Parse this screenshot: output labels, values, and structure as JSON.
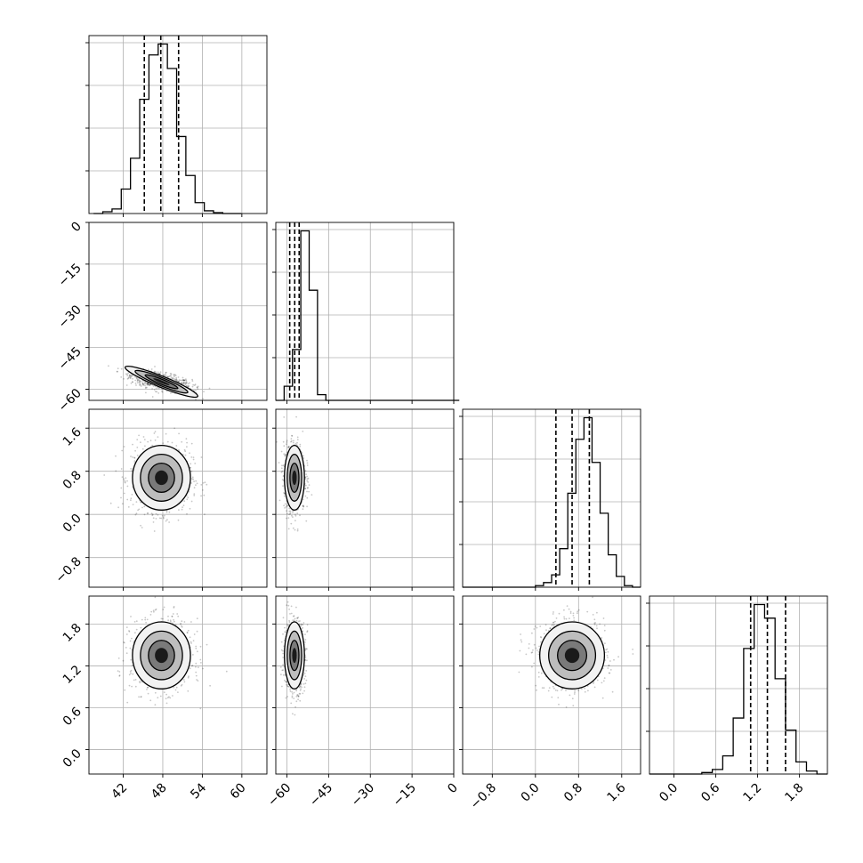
{
  "chart_data": {
    "type": "corner",
    "grid": true,
    "parameters": [
      {
        "title": "",
        "ticks": [
          42,
          48,
          54,
          60
        ],
        "tick_labels": [
          "42",
          "48",
          "54",
          "60"
        ],
        "range": [
          36.8,
          63.8
        ],
        "quantiles": [
          45.2,
          47.7,
          50.4
        ],
        "center": 47.8,
        "sd": 2.2
      },
      {
        "title": "",
        "ticks": [
          -60,
          -45,
          -30,
          -15,
          0
        ],
        "tick_labels": [
          "−60",
          "−45",
          "−30",
          "−15",
          "0"
        ],
        "range": [
          -64.0,
          0.0
        ],
        "quantiles": [
          -59.0,
          -57.2,
          -55.6
        ],
        "center": -57.3,
        "sd": 1.8
      },
      {
        "title": "",
        "ticks": [
          -0.8,
          0.0,
          0.8,
          1.6
        ],
        "tick_labels": [
          "−0.8",
          "0.0",
          "0.8",
          "1.6"
        ],
        "range": [
          -1.35,
          1.95
        ],
        "quantiles": [
          0.38,
          0.68,
          1.0
        ],
        "center": 0.68,
        "sd": 0.3
      },
      {
        "title": "",
        "ticks": [
          0.0,
          0.6,
          1.2,
          1.8
        ],
        "tick_labels": [
          "0.0",
          "0.6",
          "1.2",
          "1.8"
        ],
        "range": [
          -0.35,
          2.2
        ],
        "quantiles": [
          1.1,
          1.34,
          1.6
        ],
        "center": 1.35,
        "sd": 0.24
      }
    ],
    "histograms": [
      {
        "param": 0,
        "bins": [
          37.5,
          38.9,
          40.3,
          41.7,
          43.1,
          44.5,
          45.9,
          47.3,
          48.7,
          50.1,
          51.5,
          52.9,
          54.3,
          55.7,
          57.1,
          58.5
        ],
        "counts": [
          0,
          2,
          5,
          27,
          61,
          126,
          175,
          187,
          160,
          85,
          42,
          12,
          3,
          1,
          0,
          0
        ]
      },
      {
        "param": 1,
        "bins": [
          -64,
          -61,
          -58,
          -55,
          -52,
          -49,
          -46,
          -43,
          -40,
          -37,
          -34,
          -31,
          -28,
          -25,
          -22,
          -19,
          -16,
          -13,
          -10,
          -7,
          -4,
          -1
        ],
        "counts": [
          0,
          5,
          18,
          60,
          39,
          2,
          0,
          0,
          0,
          0,
          0,
          0,
          0,
          0,
          0,
          0,
          0,
          0,
          0,
          0,
          0,
          0
        ]
      },
      {
        "param": 2,
        "bins": [
          -1.35,
          -1.2,
          -1.05,
          -0.9,
          -0.75,
          -0.6,
          -0.45,
          -0.3,
          -0.15,
          0.0,
          0.15,
          0.3,
          0.45,
          0.6,
          0.75,
          0.9,
          1.05,
          1.2,
          1.35,
          1.5,
          1.65,
          1.8
        ],
        "counts": [
          0,
          0,
          0,
          0,
          0,
          0,
          0,
          0,
          0,
          1,
          3,
          8,
          25,
          61,
          96,
          110,
          81,
          48,
          21,
          7,
          1,
          0
        ]
      },
      {
        "param": 3,
        "bins": [
          -0.35,
          -0.2,
          -0.05,
          0.1,
          0.25,
          0.4,
          0.55,
          0.7,
          0.85,
          1.0,
          1.15,
          1.3,
          1.45,
          1.6,
          1.75,
          1.9,
          2.05
        ],
        "counts": [
          0,
          0,
          0,
          0,
          0,
          1,
          3,
          12,
          37,
          83,
          112,
          103,
          63,
          29,
          8,
          2,
          0
        ]
      }
    ],
    "scatter_panels": [
      {
        "x_param": 0,
        "y_param": 1,
        "correlation": -0.6
      },
      {
        "x_param": 0,
        "y_param": 2,
        "correlation": 0.0
      },
      {
        "x_param": 1,
        "y_param": 2,
        "correlation": 0.0
      },
      {
        "x_param": 0,
        "y_param": 3,
        "correlation": 0.0
      },
      {
        "x_param": 1,
        "y_param": 3,
        "correlation": 0.0
      },
      {
        "x_param": 2,
        "y_param": 3,
        "correlation": 0.0
      }
    ]
  }
}
